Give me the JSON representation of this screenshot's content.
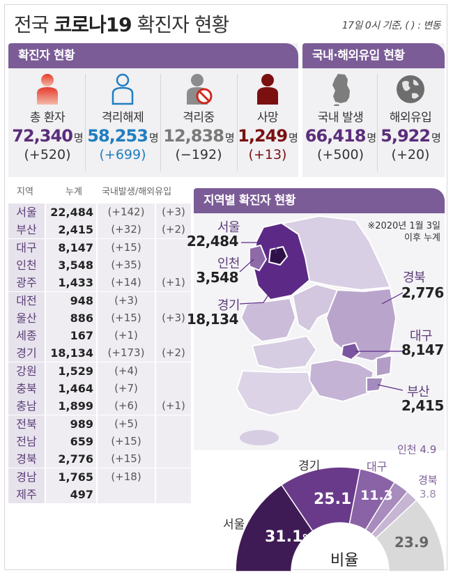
{
  "header": {
    "title_prefix": "전국 ",
    "title_bold": "코로나19",
    "title_suffix": " 확진자 현황",
    "basis": "17일 0시 기준, ( ) : 변동"
  },
  "status": {
    "section_title": "확진자 현황",
    "items": [
      {
        "label": "총 환자",
        "value": "72,340",
        "unit": "명",
        "change": "(+520)",
        "color": "#5b2d7a",
        "icon": "person-red-icon"
      },
      {
        "label": "격리해제",
        "value": "58,253",
        "unit": "명",
        "change": "(+699)",
        "color": "#1f7ec0",
        "icon": "person-outline-icon"
      },
      {
        "label": "격리중",
        "value": "12,838",
        "unit": "명",
        "change": "(−192)",
        "color": "#7a7a7a",
        "icon": "person-blocked-icon"
      },
      {
        "label": "사망",
        "value": "1,249",
        "unit": "명",
        "change": "(+13)",
        "color": "#7a1010",
        "icon": "person-dark-red-icon"
      }
    ]
  },
  "origin": {
    "section_title": "국내·해외유입 현황",
    "items": [
      {
        "label": "국내 발생",
        "value": "66,418",
        "unit": "명",
        "change": "(+500)",
        "color": "#5b2d7a",
        "icon": "korea-map-icon"
      },
      {
        "label": "해외유입",
        "value": "5,922",
        "unit": "명",
        "change": "(+20)",
        "color": "#5b2d7a",
        "icon": "globe-icon"
      }
    ]
  },
  "table": {
    "headers": [
      "지역",
      "누계",
      "국내발생/해외유입"
    ],
    "rows": [
      {
        "region": "서울",
        "total": "22,484",
        "domestic": "(+142)",
        "overseas": "(+3)"
      },
      {
        "region": "부산",
        "total": "2,415",
        "domestic": "(+32)",
        "overseas": "(+2)"
      },
      {
        "region": "대구",
        "total": "8,147",
        "domestic": "(+15)",
        "overseas": ""
      },
      {
        "region": "인천",
        "total": "3,548",
        "domestic": "(+35)",
        "overseas": ""
      },
      {
        "region": "광주",
        "total": "1,433",
        "domestic": "(+14)",
        "overseas": "(+1)"
      },
      {
        "region": "대전",
        "total": "948",
        "domestic": "(+3)",
        "overseas": ""
      },
      {
        "region": "울산",
        "total": "886",
        "domestic": "(+15)",
        "overseas": "(+3)"
      },
      {
        "region": "세종",
        "total": "167",
        "domestic": "(+1)",
        "overseas": ""
      },
      {
        "region": "경기",
        "total": "18,134",
        "domestic": "(+173)",
        "overseas": "(+2)"
      },
      {
        "region": "강원",
        "total": "1,529",
        "domestic": "(+4)",
        "overseas": ""
      },
      {
        "region": "충북",
        "total": "1,464",
        "domestic": "(+7)",
        "overseas": ""
      },
      {
        "region": "충남",
        "total": "1,899",
        "domestic": "(+6)",
        "overseas": "(+1)"
      },
      {
        "region": "전북",
        "total": "989",
        "domestic": "(+5)",
        "overseas": ""
      },
      {
        "region": "전남",
        "total": "659",
        "domestic": "(+15)",
        "overseas": ""
      },
      {
        "region": "경북",
        "total": "2,776",
        "domestic": "(+15)",
        "overseas": ""
      },
      {
        "region": "경남",
        "total": "1,765",
        "domestic": "(+18)",
        "overseas": ""
      },
      {
        "region": "제주",
        "total": "497",
        "domestic": "",
        "overseas": ""
      }
    ]
  },
  "map": {
    "section_title": "지역별 확진자 현황",
    "note_line1": "※2020년 1월 3일",
    "note_line2": "이후 누계",
    "callouts": [
      {
        "label": "서울",
        "value": "22,484"
      },
      {
        "label": "인천",
        "value": "3,548"
      },
      {
        "label": "경기",
        "value": "18,134"
      },
      {
        "label": "경북",
        "value": "2,776"
      },
      {
        "label": "대구",
        "value": "8,147"
      },
      {
        "label": "부산",
        "value": "2,415"
      }
    ]
  },
  "chart_data": {
    "type": "pie",
    "title": "비율",
    "unit": "%",
    "slices": [
      {
        "label": "서울",
        "value": 31.1,
        "color": "#3f1b55"
      },
      {
        "label": "경기",
        "value": 25.1,
        "color": "#6a3a8a"
      },
      {
        "label": "대구",
        "value": 11.3,
        "color": "#8a63a6"
      },
      {
        "label": "인천",
        "value": 4.9,
        "color": "#a88cbd"
      },
      {
        "label": "경북",
        "value": 3.8,
        "color": "#c6b6d3"
      },
      {
        "label": "",
        "value": 23.9,
        "color": "#d9d9d9"
      }
    ],
    "labels": {
      "seoul_value": "31.1",
      "seoul_unit": "%",
      "gyeonggi": "25.1",
      "daegu": "11.3",
      "incheon_value": "4.9",
      "gyeongbuk_value": "3.8",
      "other": "23.9"
    },
    "layout": "half-donut"
  }
}
